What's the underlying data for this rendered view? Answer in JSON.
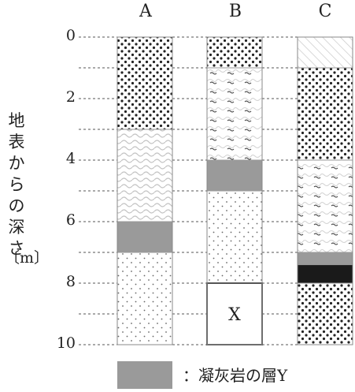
{
  "columns": [
    {
      "label": "A",
      "layers": [
        {
          "top": 0,
          "bottom": 3,
          "type": "coarse-dots"
        },
        {
          "top": 3,
          "bottom": 6,
          "type": "wavy"
        },
        {
          "top": 6,
          "bottom": 7,
          "type": "tuff"
        },
        {
          "top": 7,
          "bottom": 10,
          "type": "fine-dots"
        }
      ]
    },
    {
      "label": "B",
      "layers": [
        {
          "top": 0,
          "bottom": 1,
          "type": "coarse-dots"
        },
        {
          "top": 1,
          "bottom": 4,
          "type": "wavy-marks"
        },
        {
          "top": 4,
          "bottom": 5,
          "type": "tuff"
        },
        {
          "top": 5,
          "bottom": 8,
          "type": "fine-dots"
        },
        {
          "top": 8,
          "bottom": 10,
          "type": "unknown",
          "label": "X"
        }
      ]
    },
    {
      "label": "C",
      "layers": [
        {
          "top": 0,
          "bottom": 1,
          "type": "hatch"
        },
        {
          "top": 1,
          "bottom": 4,
          "type": "coarse-dots"
        },
        {
          "top": 4,
          "bottom": 7,
          "type": "wavy-marks"
        },
        {
          "top": 7,
          "bottom": 7.4,
          "type": "tuff"
        },
        {
          "top": 7.4,
          "bottom": 8,
          "type": "black"
        },
        {
          "top": 8,
          "bottom": 10,
          "type": "coarse-dots"
        }
      ]
    }
  ],
  "y_axis": {
    "label_chars": [
      "地",
      "表",
      "か",
      "ら",
      "の",
      "深",
      "さ"
    ],
    "unit": "〔m〕",
    "ticks": [
      "0",
      "2",
      "4",
      "6",
      "8",
      "10"
    ]
  },
  "legend": {
    "text": "：凝灰岩の層Y"
  },
  "colors": {
    "tuff": "#9a9a9a",
    "black": "#1a1a1a",
    "dots": "#333333",
    "wave": "#b8b8b8"
  }
}
